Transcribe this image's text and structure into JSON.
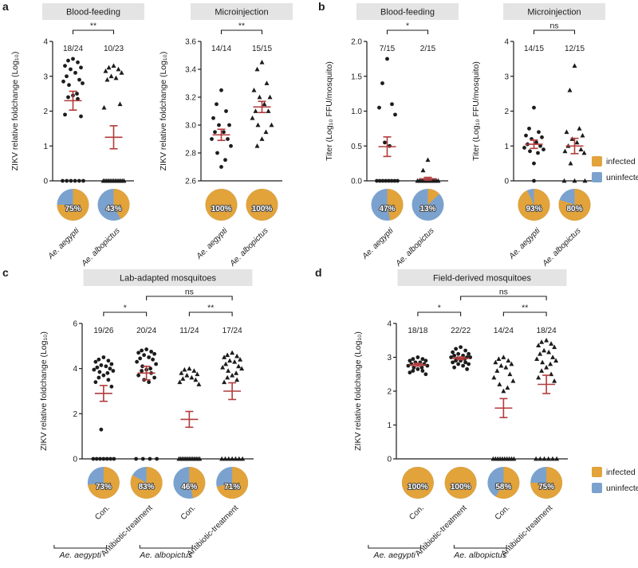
{
  "figure": {
    "panel_letters": {
      "a": "a",
      "b": "b",
      "c": "c",
      "d": "d"
    },
    "legend": {
      "infected": "infected",
      "uninfected": "uninfected"
    }
  },
  "colors": {
    "infected": "#E2A33B",
    "uninfected": "#7BA2CE",
    "mean": "#B23B3B",
    "point": "#1C1C1C",
    "axis": "#1C1C1C",
    "header_bg": "#E4E4E4"
  },
  "chart_data": [
    {
      "id": "a1",
      "panel": "a",
      "type": "scatter",
      "title": "Blood-feeding",
      "ylabel": "ZIKV relative foldchange (Log₁₀)",
      "ylim": [
        0,
        4
      ],
      "yticks": [
        0,
        1,
        2,
        3,
        4
      ],
      "ytick_labels": [
        "0",
        "1",
        "2",
        "3",
        "4"
      ],
      "significance": [
        {
          "g1": 0,
          "g2": 1,
          "label": "**",
          "level": 0
        }
      ],
      "groups": [
        {
          "label": "Ae. aegypti",
          "italic": true,
          "marker": "circle",
          "fraction": "18/24",
          "mean": 2.3,
          "sem": 0.27,
          "pie_infected_pct": 75,
          "pie_label": "75%",
          "points": [
            3.5,
            3.45,
            3.4,
            3.3,
            3.25,
            3.2,
            3.1,
            3.0,
            2.9,
            2.85,
            2.8,
            2.75,
            2.5,
            2.45,
            2.4,
            2.35,
            1.9,
            1.85,
            0,
            0,
            0,
            0,
            0,
            0
          ]
        },
        {
          "label": "Ae. albopictus",
          "italic": true,
          "marker": "triangle",
          "fraction": "10/23",
          "mean": 1.25,
          "sem": 0.33,
          "pie_infected_pct": 43,
          "pie_label": "43%",
          "points": [
            3.3,
            3.25,
            3.2,
            3.15,
            3.1,
            3.0,
            2.95,
            2.9,
            2.2,
            2.1,
            0,
            0,
            0,
            0,
            0,
            0,
            0,
            0,
            0,
            0,
            0,
            0,
            0
          ]
        }
      ]
    },
    {
      "id": "a2",
      "panel": "a",
      "type": "scatter",
      "title": "Microinjection",
      "ylabel": "ZIKV relative foldchange (Log₁₀)",
      "ylim": [
        2.6,
        3.6
      ],
      "yticks": [
        2.6,
        2.8,
        3.0,
        3.2,
        3.4,
        3.6
      ],
      "ytick_labels": [
        "2.6",
        "2.8",
        "3.0",
        "3.2",
        "3.4",
        "3.6"
      ],
      "significance": [
        {
          "g1": 0,
          "g2": 1,
          "label": "**",
          "level": 0
        }
      ],
      "groups": [
        {
          "label": "Ae. aegypti",
          "italic": true,
          "marker": "circle",
          "fraction": "14/14",
          "mean": 2.93,
          "sem": 0.04,
          "pie_infected_pct": 100,
          "pie_label": "100%",
          "points": [
            3.25,
            3.15,
            3.1,
            3.05,
            3.0,
            3.0,
            2.95,
            2.95,
            2.9,
            2.9,
            2.85,
            2.8,
            2.75,
            2.7
          ]
        },
        {
          "label": "Ae. albopictus",
          "italic": true,
          "marker": "triangle",
          "fraction": "15/15",
          "mean": 3.13,
          "sem": 0.04,
          "pie_infected_pct": 100,
          "pie_label": "100%",
          "points": [
            3.45,
            3.4,
            3.3,
            3.25,
            3.2,
            3.2,
            3.15,
            3.1,
            3.1,
            3.05,
            3.0,
            3.0,
            2.95,
            2.9,
            2.85
          ]
        }
      ]
    },
    {
      "id": "b1",
      "panel": "b",
      "type": "scatter",
      "title": "Blood-feeding",
      "ylabel": "Titer (Log₁₀ FFU/mosquito)",
      "ylim": [
        0,
        2
      ],
      "yticks": [
        0,
        0.5,
        1,
        1.5,
        2
      ],
      "ytick_labels": [
        "0.0",
        "0.5",
        "1.0",
        "1.5",
        "2.0"
      ],
      "significance": [
        {
          "g1": 0,
          "g2": 1,
          "label": "*",
          "level": 0
        }
      ],
      "groups": [
        {
          "label": "Ae. aegypti",
          "italic": true,
          "marker": "circle",
          "fraction": "7/15",
          "mean": 0.49,
          "sem": 0.14,
          "pie_infected_pct": 47,
          "pie_label": "47%",
          "points": [
            1.75,
            1.4,
            1.1,
            1.05,
            0.95,
            0.55,
            0.5,
            0,
            0,
            0,
            0,
            0,
            0,
            0,
            0
          ]
        },
        {
          "label": "Ae. albopictus",
          "italic": true,
          "marker": "triangle",
          "fraction": "2/15",
          "mean": 0.03,
          "sem": 0.02,
          "pie_infected_pct": 13,
          "pie_label": "13%",
          "points": [
            0.3,
            0.15,
            0,
            0,
            0,
            0,
            0,
            0,
            0,
            0,
            0,
            0,
            0,
            0,
            0
          ]
        }
      ]
    },
    {
      "id": "b2",
      "panel": "b",
      "type": "scatter",
      "title": "Microinjection",
      "ylabel": "Titer (Log₁₀ FFU/mosquito)",
      "ylim": [
        0,
        4
      ],
      "yticks": [
        0,
        1,
        2,
        3,
        4
      ],
      "ytick_labels": [
        "0",
        "1",
        "2",
        "3",
        "4"
      ],
      "significance": [
        {
          "g1": 0,
          "g2": 1,
          "label": "ns",
          "level": 0
        }
      ],
      "groups": [
        {
          "label": "Ae. aegypti",
          "italic": true,
          "marker": "circle",
          "fraction": "14/15",
          "mean": 1.05,
          "sem": 0.12,
          "pie_infected_pct": 93,
          "pie_label": "93%",
          "points": [
            2.1,
            1.5,
            1.4,
            1.3,
            1.25,
            1.2,
            1.1,
            1.05,
            1.0,
            0.95,
            0.9,
            0.85,
            0.8,
            0.5,
            0
          ]
        },
        {
          "label": "Ae. albopictus",
          "italic": true,
          "marker": "triangle",
          "fraction": "12/15",
          "mean": 1.0,
          "sem": 0.22,
          "pie_infected_pct": 80,
          "pie_label": "80%",
          "points": [
            3.3,
            2.6,
            1.5,
            1.4,
            1.3,
            1.2,
            1.1,
            1.0,
            0.9,
            0.85,
            0.8,
            0.5,
            0,
            0,
            0
          ]
        }
      ]
    },
    {
      "id": "c",
      "panel": "c",
      "type": "scatter",
      "title": "Lab-adapted mosquitoes",
      "ylabel": "ZIKV relative foldchange (Log₁₀)",
      "ylim": [
        0,
        6
      ],
      "yticks": [
        0,
        2,
        4,
        6
      ],
      "ytick_labels": [
        "0",
        "2",
        "4",
        "6"
      ],
      "significance": [
        {
          "g1": 0,
          "g2": 1,
          "label": "*",
          "level": 0
        },
        {
          "g1": 2,
          "g2": 3,
          "label": "**",
          "level": 0
        },
        {
          "g1": 1,
          "g2": 3,
          "label": "ns",
          "level": 1
        }
      ],
      "species_groups": [
        {
          "label": "Ae. aegypti",
          "groups": [
            0,
            1
          ]
        },
        {
          "label": "Ae. albopictus",
          "groups": [
            2,
            3
          ]
        }
      ],
      "groups": [
        {
          "label": "Con.",
          "italic": false,
          "marker": "circle",
          "fraction": "19/26",
          "mean": 2.9,
          "sem": 0.35,
          "pie_infected_pct": 73,
          "pie_label": "73%",
          "points": [
            4.5,
            4.4,
            4.35,
            4.3,
            4.2,
            4.15,
            4.1,
            4.05,
            4.0,
            3.95,
            3.9,
            3.85,
            3.8,
            3.7,
            3.6,
            3.5,
            3.4,
            3.2,
            1.3,
            0,
            0,
            0,
            0,
            0,
            0,
            0
          ]
        },
        {
          "label": "Antibiotic-treatment",
          "italic": false,
          "marker": "circle",
          "fraction": "20/24",
          "mean": 3.8,
          "sem": 0.3,
          "pie_infected_pct": 83,
          "pie_label": "83%",
          "points": [
            4.85,
            4.8,
            4.75,
            4.7,
            4.65,
            4.6,
            4.5,
            4.45,
            4.4,
            4.3,
            4.2,
            4.1,
            4.0,
            3.95,
            3.9,
            3.8,
            3.7,
            3.6,
            3.5,
            3.4,
            0,
            0,
            0,
            0
          ]
        },
        {
          "label": "Con.",
          "italic": false,
          "marker": "triangle",
          "fraction": "11/24",
          "mean": 1.75,
          "sem": 0.35,
          "pie_infected_pct": 46,
          "pie_label": "46%",
          "points": [
            4.0,
            3.95,
            3.9,
            3.8,
            3.75,
            3.7,
            3.6,
            3.55,
            3.5,
            3.4,
            3.3,
            0,
            0,
            0,
            0,
            0,
            0,
            0,
            0,
            0,
            0,
            0,
            0,
            0
          ]
        },
        {
          "label": "Antibiotic-treatment",
          "italic": false,
          "marker": "triangle",
          "fraction": "17/24",
          "mean": 3.0,
          "sem": 0.37,
          "pie_infected_pct": 71,
          "pie_label": "71%",
          "points": [
            4.7,
            4.6,
            4.55,
            4.5,
            4.4,
            4.35,
            4.3,
            4.2,
            4.1,
            4.05,
            4.0,
            3.9,
            3.8,
            3.7,
            3.6,
            3.5,
            3.4,
            0,
            0,
            0,
            0,
            0,
            0,
            0
          ]
        }
      ]
    },
    {
      "id": "d",
      "panel": "d",
      "type": "scatter",
      "title": "Field-derived mosquitoes",
      "ylabel": "ZIKV relative foldchange (Log₁₀)",
      "ylim": [
        0,
        4
      ],
      "yticks": [
        0,
        1,
        2,
        3,
        4
      ],
      "ytick_labels": [
        "0",
        "1",
        "2",
        "3",
        "4"
      ],
      "significance": [
        {
          "g1": 0,
          "g2": 1,
          "label": "*",
          "level": 0
        },
        {
          "g1": 2,
          "g2": 3,
          "label": "**",
          "level": 0
        },
        {
          "g1": 1,
          "g2": 3,
          "label": "ns",
          "level": 1
        }
      ],
      "species_groups": [
        {
          "label": "Ae. aegypti",
          "groups": [
            0,
            1
          ]
        },
        {
          "label": "Ae. albopictus",
          "groups": [
            2,
            3
          ]
        }
      ],
      "groups": [
        {
          "label": "Con.",
          "italic": false,
          "marker": "circle",
          "fraction": "18/18",
          "mean": 2.78,
          "sem": 0.04,
          "pie_infected_pct": 100,
          "pie_label": "100%",
          "points": [
            3.0,
            2.95,
            2.95,
            2.9,
            2.9,
            2.85,
            2.85,
            2.8,
            2.8,
            2.75,
            2.75,
            2.7,
            2.7,
            2.65,
            2.6,
            2.6,
            2.55,
            2.5
          ]
        },
        {
          "label": "Antibiotic-treatment",
          "italic": false,
          "marker": "circle",
          "fraction": "22/22",
          "mean": 2.97,
          "sem": 0.04,
          "pie_infected_pct": 100,
          "pie_label": "100%",
          "points": [
            3.3,
            3.25,
            3.2,
            3.15,
            3.1,
            3.1,
            3.05,
            3.05,
            3.0,
            3.0,
            3.0,
            2.95,
            2.95,
            2.9,
            2.9,
            2.85,
            2.85,
            2.8,
            2.8,
            2.75,
            2.7,
            2.65
          ]
        },
        {
          "label": "Con.",
          "italic": false,
          "marker": "triangle",
          "fraction": "14/24",
          "mean": 1.5,
          "sem": 0.28,
          "pie_infected_pct": 58,
          "pie_label": "58%",
          "points": [
            3.0,
            2.95,
            2.9,
            2.85,
            2.8,
            2.75,
            2.7,
            2.6,
            2.5,
            2.4,
            2.3,
            2.2,
            2.1,
            2.0,
            0,
            0,
            0,
            0,
            0,
            0,
            0,
            0,
            0,
            0
          ]
        },
        {
          "label": "Antibiotic-treatment",
          "italic": false,
          "marker": "triangle",
          "fraction": "18/24",
          "mean": 2.2,
          "sem": 0.27,
          "pie_infected_pct": 75,
          "pie_label": "75%",
          "points": [
            3.5,
            3.45,
            3.4,
            3.35,
            3.3,
            3.2,
            3.15,
            3.1,
            3.0,
            2.95,
            2.9,
            2.85,
            2.8,
            2.7,
            2.6,
            2.5,
            2.4,
            2.3,
            0,
            0,
            0,
            0,
            0,
            0
          ]
        }
      ]
    }
  ]
}
